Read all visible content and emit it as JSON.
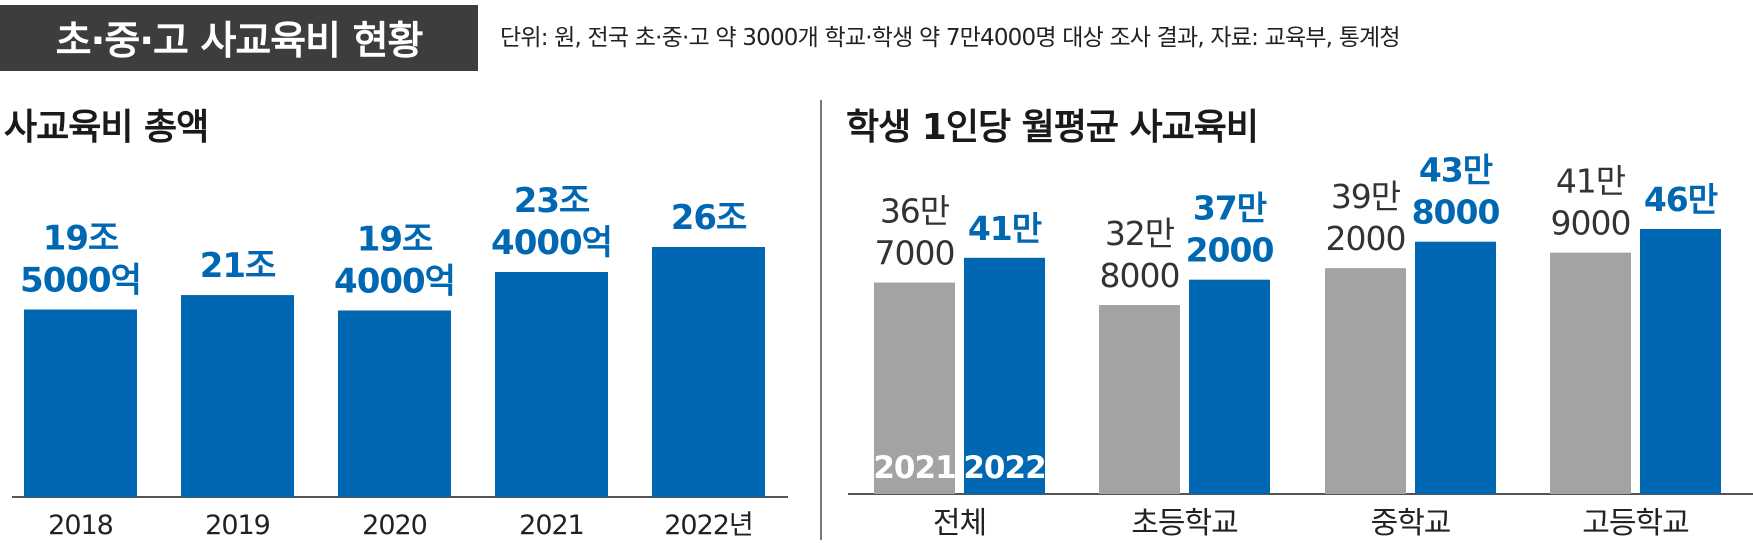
{
  "header": {
    "title": "초·중·고 사교육비 현황",
    "source": "단위: 원, 전국 초·중·고 약 3000개 학교·학생 약 7만4000명 대상 조사 결과, 자료: 교육부, 통계청"
  },
  "colors": {
    "blue": "#0068b3",
    "gray": "#a3a3a5",
    "axis": "#555555"
  },
  "chart_data": [
    {
      "type": "bar",
      "title": "사교육비 총액",
      "categories": [
        "2018",
        "2019",
        "2020",
        "2021",
        "2022년"
      ],
      "values": [
        195000,
        210000,
        194000,
        234000,
        260000
      ],
      "unit_note": "억 원",
      "data_labels": [
        [
          "19조",
          "5000억"
        ],
        [
          "21조"
        ],
        [
          "19조",
          "4000억"
        ],
        [
          "23조",
          "4000억"
        ],
        [
          "26조"
        ]
      ]
    },
    {
      "type": "bar",
      "title": "학생 1인당 월평균 사교육비",
      "categories": [
        "전체",
        "초등학교",
        "중학교",
        "고등학교"
      ],
      "series": [
        {
          "name": "2021",
          "values": [
            367000,
            328000,
            392000,
            419000
          ],
          "color": "#a3a3a5",
          "data_labels": [
            [
              "36만",
              "7000"
            ],
            [
              "32만",
              "8000"
            ],
            [
              "39만",
              "2000"
            ],
            [
              "41만",
              "9000"
            ]
          ]
        },
        {
          "name": "2022",
          "values": [
            410000,
            372000,
            438000,
            460000
          ],
          "color": "#0068b3",
          "data_labels": [
            [
              "41만"
            ],
            [
              "37만",
              "2000"
            ],
            [
              "43만",
              "8000"
            ],
            [
              "46만"
            ]
          ]
        }
      ]
    }
  ]
}
